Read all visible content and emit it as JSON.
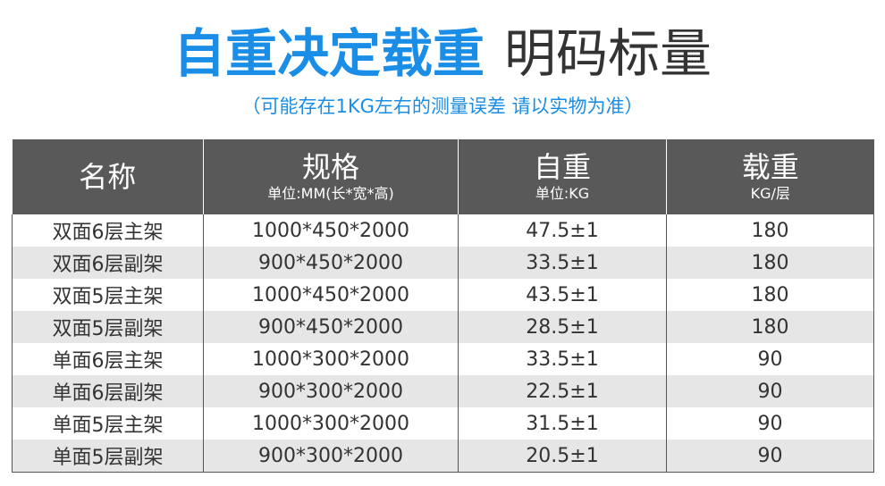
{
  "title": {
    "accent": "自重决定载重",
    "plain": "明码标量"
  },
  "subtitle": "（可能存在1KG左右的测量误差 请以实物为准）",
  "table": {
    "headers": [
      {
        "main": "名称",
        "sub": ""
      },
      {
        "main": "规格",
        "sub": "单位:MM(长*宽*高)"
      },
      {
        "main": "自重",
        "sub": "单位:KG"
      },
      {
        "main": "载重",
        "sub": "KG/层"
      }
    ],
    "rows": [
      [
        "双面6层主架",
        "1000*450*2000",
        "47.5±1",
        "180"
      ],
      [
        "双面6层副架",
        "900*450*2000",
        "33.5±1",
        "180"
      ],
      [
        "双面5层主架",
        "1000*450*2000",
        "43.5±1",
        "180"
      ],
      [
        "双面5层副架",
        "900*450*2000",
        "28.5±1",
        "180"
      ],
      [
        "单面6层主架",
        "1000*300*2000",
        "33.5±1",
        "90"
      ],
      [
        "单面6层副架",
        "900*300*2000",
        "22.5±1",
        "90"
      ],
      [
        "单面5层主架",
        "1000*300*2000",
        "31.5±1",
        "90"
      ],
      [
        "单面5层副架",
        "900*300*2000",
        "20.5±1",
        "90"
      ]
    ]
  },
  "colors": {
    "accent": "#1a8ee6",
    "header_bg": "#595959",
    "stripe": "#e6e6e6"
  }
}
